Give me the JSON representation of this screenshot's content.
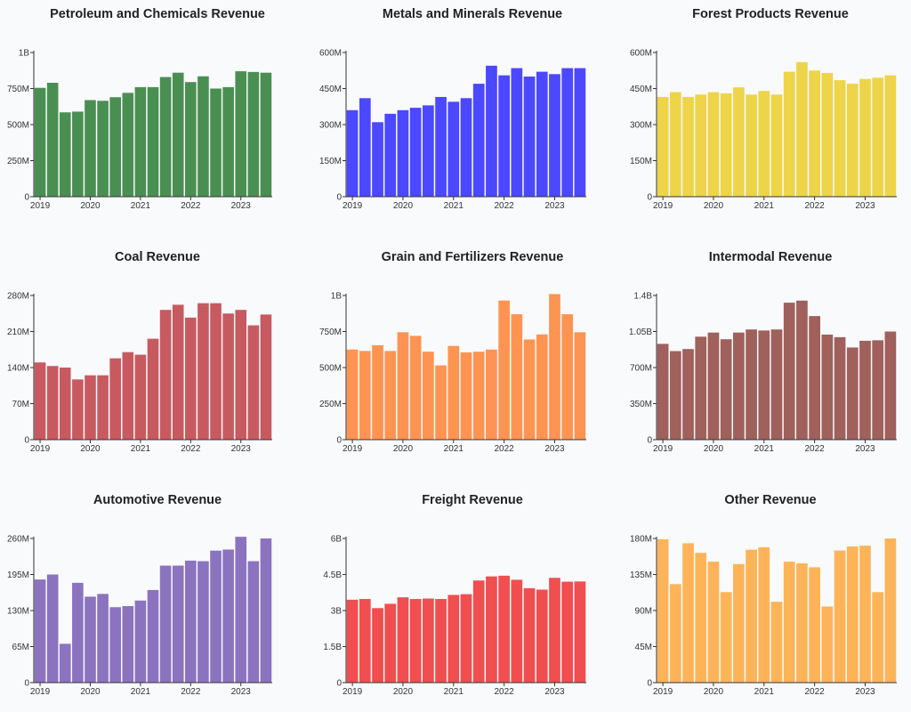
{
  "chart_data": [
    {
      "type": "bar",
      "title": "Petroleum and Chemicals Revenue",
      "color": "#4a8f52",
      "ylim": [
        0,
        1000000000
      ],
      "yticks": [
        0,
        250000000,
        500000000,
        750000000,
        1000000000
      ],
      "ytick_labels": [
        "0",
        "250M",
        "500M",
        "750M",
        "1B"
      ],
      "xtick_labels": [
        "2019",
        "2020",
        "2021",
        "2022",
        "2023"
      ],
      "values": [
        755000000,
        790000000,
        585000000,
        590000000,
        670000000,
        665000000,
        690000000,
        720000000,
        760000000,
        760000000,
        830000000,
        860000000,
        795000000,
        835000000,
        750000000,
        760000000,
        870000000,
        865000000,
        860000000
      ]
    },
    {
      "type": "bar",
      "title": "Metals and Minerals Revenue",
      "color": "#4b48ff",
      "ylim": [
        0,
        600000000
      ],
      "yticks": [
        0,
        150000000,
        300000000,
        450000000,
        600000000
      ],
      "ytick_labels": [
        "0",
        "150M",
        "300M",
        "450M",
        "600M"
      ],
      "xtick_labels": [
        "2019",
        "2020",
        "2021",
        "2022",
        "2023"
      ],
      "values": [
        360000000,
        410000000,
        310000000,
        345000000,
        360000000,
        370000000,
        380000000,
        415000000,
        395000000,
        410000000,
        470000000,
        545000000,
        505000000,
        535000000,
        500000000,
        520000000,
        510000000,
        535000000,
        535000000
      ]
    },
    {
      "type": "bar",
      "title": "Forest Products Revenue",
      "color": "#eed448",
      "ylim": [
        0,
        600000000
      ],
      "yticks": [
        0,
        150000000,
        300000000,
        450000000,
        600000000
      ],
      "ytick_labels": [
        "0",
        "150M",
        "300M",
        "450M",
        "600M"
      ],
      "xtick_labels": [
        "2019",
        "2020",
        "2021",
        "2022",
        "2023"
      ],
      "values": [
        415000000,
        435000000,
        415000000,
        425000000,
        435000000,
        430000000,
        455000000,
        425000000,
        440000000,
        425000000,
        520000000,
        560000000,
        525000000,
        515000000,
        485000000,
        470000000,
        490000000,
        495000000,
        505000000
      ]
    },
    {
      "type": "bar",
      "title": "Coal Revenue",
      "color": "#c75a60",
      "ylim": [
        0,
        280000000
      ],
      "yticks": [
        0,
        70000000,
        140000000,
        210000000,
        280000000
      ],
      "ytick_labels": [
        "0",
        "70M",
        "140M",
        "210M",
        "280M"
      ],
      "xtick_labels": [
        "2019",
        "2020",
        "2021",
        "2022",
        "2023"
      ],
      "values": [
        150000000,
        143000000,
        140000000,
        117000000,
        125000000,
        125000000,
        158000000,
        170000000,
        165000000,
        196000000,
        252000000,
        262000000,
        237000000,
        265000000,
        265000000,
        245000000,
        252000000,
        222000000,
        243000000
      ]
    },
    {
      "type": "bar",
      "title": "Grain and Fertilizers Revenue",
      "color": "#fe9452",
      "ylim": [
        0,
        1000000000
      ],
      "yticks": [
        0,
        250000000,
        500000000,
        750000000,
        1000000000
      ],
      "ytick_labels": [
        "0",
        "250M",
        "500M",
        "750M",
        "1B"
      ],
      "xtick_labels": [
        "2019",
        "2020",
        "2021",
        "2022",
        "2023"
      ],
      "values": [
        625000000,
        615000000,
        655000000,
        615000000,
        745000000,
        720000000,
        610000000,
        515000000,
        650000000,
        605000000,
        610000000,
        625000000,
        965000000,
        870000000,
        695000000,
        730000000,
        1010000000,
        870000000,
        745000000
      ]
    },
    {
      "type": "bar",
      "title": "Intermodal Revenue",
      "color": "#a0605b",
      "ylim": [
        0,
        1400000000
      ],
      "yticks": [
        0,
        350000000,
        700000000,
        1050000000,
        1400000000
      ],
      "ytick_labels": [
        "0",
        "350M",
        "700M",
        "1.05B",
        "1.4B"
      ],
      "xtick_labels": [
        "2019",
        "2020",
        "2021",
        "2022",
        "2023"
      ],
      "values": [
        930000000,
        860000000,
        880000000,
        1000000000,
        1040000000,
        975000000,
        1040000000,
        1070000000,
        1060000000,
        1070000000,
        1330000000,
        1350000000,
        1200000000,
        1020000000,
        995000000,
        895000000,
        960000000,
        965000000,
        1050000000
      ]
    },
    {
      "type": "bar",
      "title": "Automotive Revenue",
      "color": "#8b73c0",
      "ylim": [
        0,
        260000000
      ],
      "yticks": [
        0,
        65000000,
        130000000,
        195000000,
        260000000
      ],
      "ytick_labels": [
        "0",
        "65M",
        "130M",
        "195M",
        "260M"
      ],
      "xtick_labels": [
        "2019",
        "2020",
        "2021",
        "2022",
        "2023"
      ],
      "values": [
        186000000,
        195000000,
        70000000,
        180000000,
        155000000,
        160000000,
        136000000,
        138000000,
        148000000,
        167000000,
        211000000,
        211000000,
        220000000,
        219000000,
        238000000,
        240000000,
        263000000,
        219000000,
        260000000
      ]
    },
    {
      "type": "bar",
      "title": "Freight Revenue",
      "color": "#f04e4f",
      "ylim": [
        0,
        6000000000
      ],
      "yticks": [
        0,
        1500000000,
        3000000000,
        4500000000,
        6000000000
      ],
      "ytick_labels": [
        "0",
        "1.5B",
        "3B",
        "4.5B",
        "6B"
      ],
      "xtick_labels": [
        "2019",
        "2020",
        "2021",
        "2022",
        "2023"
      ],
      "values": [
        3450000000,
        3480000000,
        3100000000,
        3280000000,
        3550000000,
        3480000000,
        3500000000,
        3480000000,
        3650000000,
        3680000000,
        4250000000,
        4420000000,
        4450000000,
        4280000000,
        3930000000,
        3870000000,
        4360000000,
        4200000000,
        4210000000
      ]
    },
    {
      "type": "bar",
      "title": "Other Revenue",
      "color": "#fdb459",
      "ylim": [
        0,
        180000000
      ],
      "yticks": [
        0,
        45000000,
        90000000,
        135000000,
        180000000
      ],
      "ytick_labels": [
        "0",
        "45M",
        "90M",
        "135M",
        "180M"
      ],
      "xtick_labels": [
        "2019",
        "2020",
        "2021",
        "2022",
        "2023"
      ],
      "values": [
        179000000,
        123000000,
        174000000,
        162000000,
        151000000,
        113000000,
        148000000,
        166000000,
        169000000,
        101000000,
        151000000,
        149000000,
        144000000,
        95000000,
        165000000,
        170000000,
        171000000,
        113000000,
        180000000
      ]
    }
  ]
}
